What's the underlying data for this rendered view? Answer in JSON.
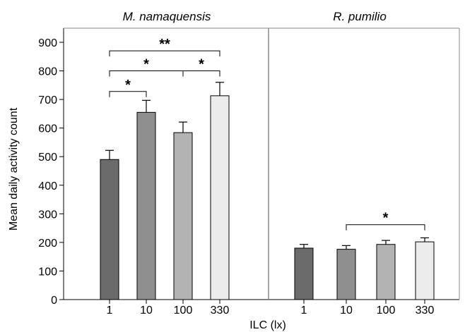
{
  "chart_data": {
    "type": "bar",
    "ylabel": "Mean daily activity count",
    "xlabel": "ILC (lx)",
    "ylim": [
      0,
      900
    ],
    "yticks": [
      0,
      100,
      200,
      300,
      400,
      500,
      600,
      700,
      800,
      900
    ],
    "categories": [
      "1",
      "10",
      "100",
      "330"
    ],
    "colors": [
      "#6b6b6b",
      "#8f8f8f",
      "#b3b3b3",
      "#ececec"
    ],
    "panels": [
      {
        "title": "M. namaquensis",
        "values": [
          490,
          655,
          584,
          713
        ],
        "errors": [
          32,
          42,
          37,
          47
        ],
        "significance": [
          {
            "from": 0,
            "to": 3,
            "y": 870,
            "label": "**"
          },
          {
            "from": 0,
            "to": 2,
            "y": 800,
            "label": "*"
          },
          {
            "from": 2,
            "to": 3,
            "y": 800,
            "label": "*"
          },
          {
            "from": 0,
            "to": 1,
            "y": 728,
            "label": "*"
          }
        ]
      },
      {
        "title": "R. pumilio",
        "values": [
          180,
          176,
          193,
          202
        ],
        "errors": [
          13,
          13,
          14,
          14
        ],
        "significance": [
          {
            "from": 1,
            "to": 3,
            "y": 262,
            "label": "*"
          }
        ]
      }
    ]
  }
}
